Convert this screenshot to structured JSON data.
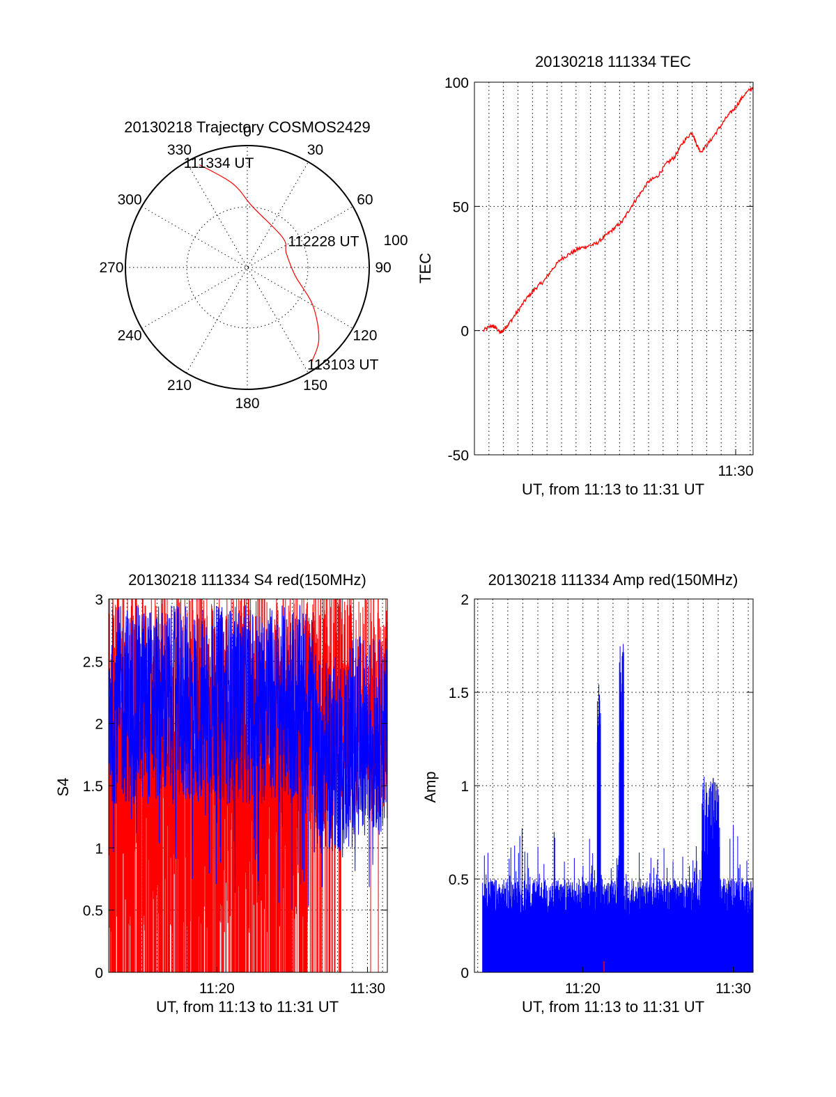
{
  "colors": {
    "red": "#ff0000",
    "blue": "#0000ff",
    "axis": "#000000"
  },
  "chart_data": [
    {
      "type": "polar",
      "title": "20130218 Trajectory COSMOS2429",
      "angle_labels": [
        "0",
        "30",
        "60",
        "90",
        "120",
        "150",
        "180",
        "210",
        "240",
        "270",
        "300",
        "330"
      ],
      "radius_label": "100",
      "elevation_rings": [
        90,
        45
      ],
      "trajectory": [
        {
          "az": 335,
          "r": 0.93
        },
        {
          "az": 350,
          "r": 0.7
        },
        {
          "az": 5,
          "r": 0.5
        },
        {
          "az": 50,
          "r": 0.38
        },
        {
          "az": 70,
          "r": 0.34
        },
        {
          "az": 100,
          "r": 0.4
        },
        {
          "az": 120,
          "r": 0.62
        },
        {
          "az": 135,
          "r": 0.83
        },
        {
          "az": 146,
          "r": 0.94
        }
      ],
      "annotations": [
        {
          "text": "111334 UT",
          "az": 330,
          "r": 0.93
        },
        {
          "text": "112228 UT",
          "az": 77,
          "r": 0.4
        },
        {
          "text": "113103 UT",
          "az": 146,
          "r": 0.94
        }
      ]
    },
    {
      "type": "line",
      "title": "20130218 111334 TEC",
      "xlabel": "UT, from 11:13 to 11:31 UT",
      "ylabel": "TEC",
      "xlim": [
        11.2,
        11.52
      ],
      "ylim": [
        -50,
        100
      ],
      "yticks": [
        -50,
        0,
        50,
        100
      ],
      "xticks": [
        {
          "label": "11:30",
          "x": 11.5
        }
      ],
      "grid": true,
      "series": [
        {
          "color": "red",
          "x": [
            11.21,
            11.22,
            11.225,
            11.23,
            11.235,
            11.24,
            11.25,
            11.26,
            11.27,
            11.28,
            11.29,
            11.3,
            11.31,
            11.32,
            11.33,
            11.34,
            11.35,
            11.36,
            11.37,
            11.38,
            11.39,
            11.4,
            11.41,
            11.42,
            11.43,
            11.44,
            11.45,
            11.455,
            11.46,
            11.47,
            11.48,
            11.49,
            11.5,
            11.51,
            11.52
          ],
          "y": [
            0,
            2,
            1,
            -1,
            1,
            3,
            8,
            13,
            17,
            20,
            25,
            29,
            31,
            33,
            34,
            35,
            38,
            41,
            44,
            50,
            55,
            60,
            62,
            67,
            70,
            76,
            80,
            75,
            72,
            76,
            81,
            86,
            90,
            95,
            98
          ]
        }
      ]
    },
    {
      "type": "line",
      "title": "20130218 111334 S4 red(150MHz)",
      "xlabel": "UT, from 11:13 to 11:31 UT",
      "ylabel": "S4",
      "xlim": [
        11.213,
        11.522
      ],
      "ylim": [
        0,
        3
      ],
      "yticks": [
        0,
        0.5,
        1,
        1.5,
        2,
        2.5,
        3
      ],
      "yticklabels": [
        "0",
        "0.5",
        "1",
        "1.5",
        "2",
        "2.5",
        "3"
      ],
      "xticks": [
        {
          "label": "11:20",
          "x": 11.333
        },
        {
          "label": "11:30",
          "x": 11.5
        }
      ],
      "grid": true,
      "series": [
        {
          "color": "red",
          "render": "dense",
          "x_range": [
            11.213,
            11.522
          ],
          "y_range": [
            0,
            3
          ]
        },
        {
          "color": "blue",
          "render": "dense",
          "x_range": [
            11.213,
            11.522
          ],
          "y_range": [
            0.3,
            3
          ]
        }
      ]
    },
    {
      "type": "bar",
      "title": "20130218 111334 Amp red(150MHz)",
      "xlabel": "UT, from 11:13 to 11:31 UT",
      "ylabel": "Amp",
      "xlim": [
        11.213,
        11.522
      ],
      "ylim": [
        0,
        2
      ],
      "yticks": [
        0,
        0.5,
        1,
        1.5,
        2
      ],
      "yticklabels": [
        "0",
        "0.5",
        "1",
        "1.5",
        "2"
      ],
      "xticks": [
        {
          "label": "11:20",
          "x": 11.333
        },
        {
          "label": "11:30",
          "x": 11.5
        }
      ],
      "grid": true,
      "series": [
        {
          "color": "blue",
          "render": "dense",
          "x_range": [
            11.222,
            11.522
          ],
          "y_range": [
            0,
            1.82
          ]
        }
      ]
    }
  ]
}
